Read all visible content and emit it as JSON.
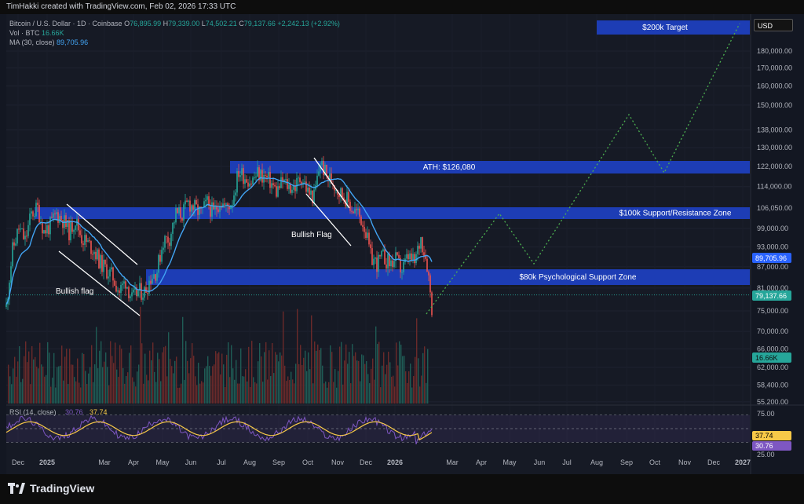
{
  "header": {
    "credit": "TimHakki created with TradingView.com, Feb 02, 2026 17:33 UTC"
  },
  "legend": {
    "symbol": "Bitcoin / U.S. Dollar · 1D · Coinbase",
    "o_label": "O",
    "o": "76,895.99",
    "h_label": "H",
    "h": "79,339.00",
    "l_label": "L",
    "l": "74,502.21",
    "c_label": "C",
    "c": "79,137.66",
    "change": "+2,242.13 (+2.92%)",
    "vol_label": "Vol · BTC",
    "vol": "16.66K",
    "ma_label": "MA (30, close)",
    "ma": "89,705.96"
  },
  "currency": "USD",
  "brand": "TradingView",
  "colors": {
    "bg": "#131722",
    "up": "#26a69a",
    "down": "#ef5350",
    "zone": "#1e3fbd",
    "ma": "#42a5f5",
    "rsi": "#7e57c2",
    "rsi_ma": "#f7c948",
    "projection": "#4caf50"
  },
  "chart_data": {
    "type": "candlestick",
    "price_axis": {
      "ticks": [
        "180,000.00",
        "170,000.00",
        "160,000.00",
        "150,000.00",
        "138,000.00",
        "130,000.00",
        "122,000.00",
        "114,000.00",
        "106,050.00",
        "99,000.00",
        "93,000.00",
        "87,000.00",
        "81,000.00",
        "75,000.00",
        "70,000.00",
        "66,000.00",
        "62,000.00",
        "58,400.00",
        "55,200.00"
      ],
      "ylim": [
        55200,
        190000
      ],
      "scale": "log"
    },
    "time_axis": {
      "ticks": [
        "Dec",
        "2025",
        "Mar",
        "Apr",
        "May",
        "Jun",
        "Jul",
        "Aug",
        "Sep",
        "Oct",
        "Nov",
        "Dec",
        "2026",
        "Mar",
        "Apr",
        "May",
        "Jun",
        "Jul",
        "Aug",
        "Sep",
        "Oct",
        "Nov",
        "Dec",
        "2027"
      ]
    },
    "zones": [
      {
        "label": "$200k Target",
        "low": 186000,
        "high": 194000
      },
      {
        "label": "ATH: $126,080",
        "low": 120000,
        "high": 126080
      },
      {
        "label": "$100k Support/Resistance Zone",
        "low": 101000,
        "high": 106000
      },
      {
        "label": "$80k Psychological Support Zone",
        "low": 82000,
        "high": 86000
      }
    ],
    "annotations": [
      "Bullish flag",
      "Bullish Flag"
    ],
    "price_labels": [
      {
        "text": "89,705.96",
        "value": 89705.96,
        "kind": "ma"
      },
      {
        "text": "79,137.66",
        "value": 79137.66,
        "kind": "last"
      },
      {
        "text": "16.66K",
        "value": 16660,
        "kind": "volume"
      }
    ],
    "series": [
      {
        "name": "Price",
        "x": [
          0,
          8,
          16,
          24,
          32,
          40,
          48,
          56,
          64,
          72,
          80,
          88,
          96,
          104,
          112,
          120,
          128,
          136,
          144,
          152,
          160,
          168,
          176,
          184,
          192,
          200,
          208,
          216,
          224,
          232,
          240,
          248,
          256,
          264,
          272,
          280,
          288,
          296,
          304,
          312,
          320,
          328,
          336,
          344,
          352,
          360,
          368,
          376,
          384,
          392,
          400,
          408,
          416,
          424,
          432,
          440,
          448,
          456,
          464,
          472,
          480,
          488,
          496,
          504,
          512,
          520,
          528,
          536,
          542
        ],
        "y": [
          76000,
          92000,
          99000,
          95000,
          104000,
          106000,
          98000,
          100000,
          104000,
          102000,
          98000,
          102000,
          96000,
          94000,
          92000,
          88000,
          86000,
          84000,
          80000,
          83000,
          78000,
          80000,
          80000,
          84000,
          86000,
          95000,
          96000,
          104000,
          104000,
          108000,
          106000,
          104000,
          108000,
          104000,
          109000,
          106000,
          109000,
          120000,
          118000,
          116000,
          119000,
          118000,
          116000,
          112000,
          116000,
          114000,
          114000,
          118000,
          112000,
          110000,
          124000,
          118000,
          116000,
          112000,
          110000,
          106000,
          104000,
          100000,
          90000,
          88000,
          90000,
          88000,
          89000,
          86000,
          90000,
          88000,
          96000,
          88000,
          76000
        ]
      },
      {
        "name": "MA (30, close)",
        "values": "smoothed"
      },
      {
        "name": "Projection",
        "x": [
          "Feb 2026",
          "Apr 2026",
          "May 2026",
          "Sep 2026",
          "Oct 2026",
          "Jan 2027"
        ],
        "y": [
          75000,
          103000,
          88000,
          142000,
          121000,
          194000
        ]
      }
    ],
    "rsi": {
      "label": "RSI (14, close)",
      "value": "30.76",
      "ma_value": "37.74",
      "ticks": [
        "75.00",
        "25.00"
      ],
      "levels": [
        70,
        50,
        30
      ]
    }
  }
}
